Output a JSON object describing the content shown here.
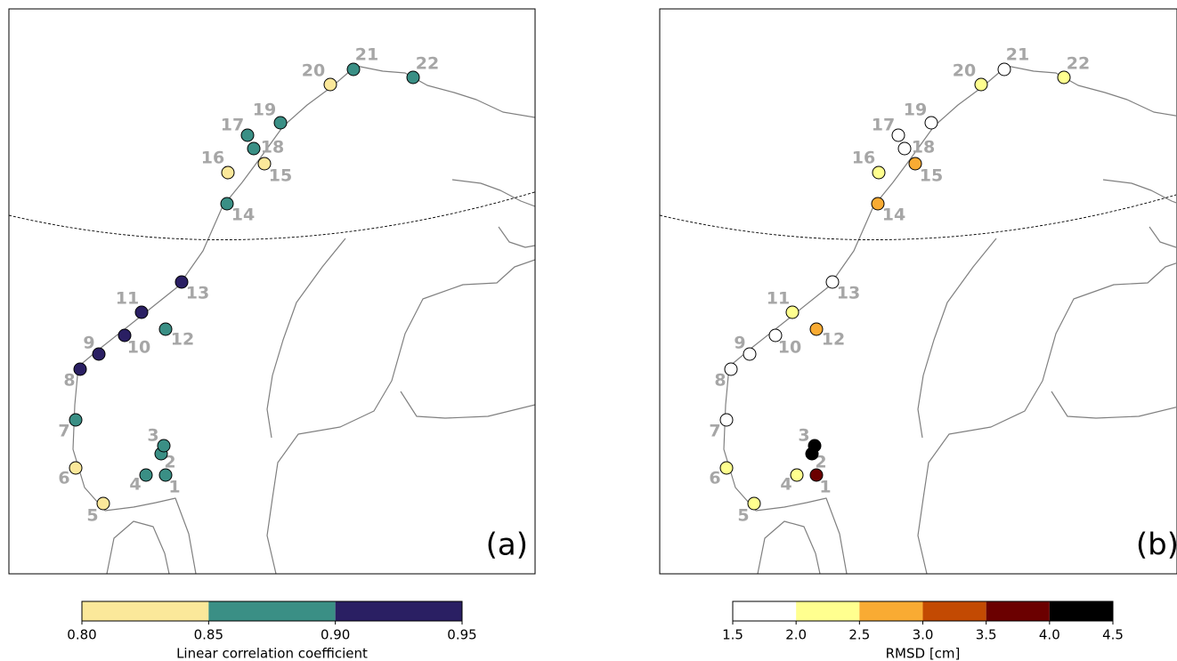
{
  "stations": [
    "1",
    "2",
    "3",
    "4",
    "5",
    "6",
    "7",
    "8",
    "9",
    "10",
    "11",
    "12",
    "13",
    "14",
    "15",
    "16",
    "17",
    "18",
    "19",
    "20",
    "21",
    "22"
  ],
  "panels": [
    {
      "label": "(a)",
      "station_colors": [
        "#3a8f85",
        "#3a8f85",
        "#3a8f85",
        "#3a8f85",
        "#fbe89a",
        "#fbe89a",
        "#3a8f85",
        "#2a1f63",
        "#2a1f63",
        "#2a1f63",
        "#2a1f63",
        "#3a8f85",
        "#2a1f63",
        "#3a8f85",
        "#fbe89a",
        "#fbe89a",
        "#3a8f85",
        "#3a8f85",
        "#3a8f85",
        "#fbe89a",
        "#3a8f85",
        "#3a8f85"
      ],
      "colorbar": {
        "label": "Linear correlation coefficient",
        "ticks": [
          {
            "value": 0.8,
            "label": "0.80"
          },
          0.85,
          {
            "value": 0.9,
            "label": "0.90"
          },
          0.95
        ],
        "colors": [
          "#fbe89a",
          "#3a8f85",
          "#2a1f63"
        ]
      }
    },
    {
      "label": "(b)",
      "station_colors": [
        "#6b0000",
        "#000000",
        "#000000",
        "#ffff8f",
        "#ffff8f",
        "#ffff8f",
        "#ffffff",
        "#ffffff",
        "#ffffff",
        "#ffffff",
        "#ffff8f",
        "#f9ab33",
        "#ffffff",
        "#f9ab33",
        "#f9ab33",
        "#ffff8f",
        "#ffffff",
        "#ffffff",
        "#ffffff",
        "#ffff8f",
        "#ffffff",
        "#ffff8f"
      ],
      "colorbar": {
        "label": "RMSD [cm]",
        "ticks": [
          1.5,
          {
            "value": 2,
            "label": "2.0"
          },
          2.5,
          {
            "value": 3,
            "label": "3.0"
          },
          3.5,
          {
            "value": 4,
            "label": "4.0"
          },
          4.5
        ],
        "colors": [
          "#ffffff",
          "#ffff8f",
          "#f9ab33",
          "#c34a02",
          "#6b0000",
          "#000000"
        ]
      }
    }
  ]
}
